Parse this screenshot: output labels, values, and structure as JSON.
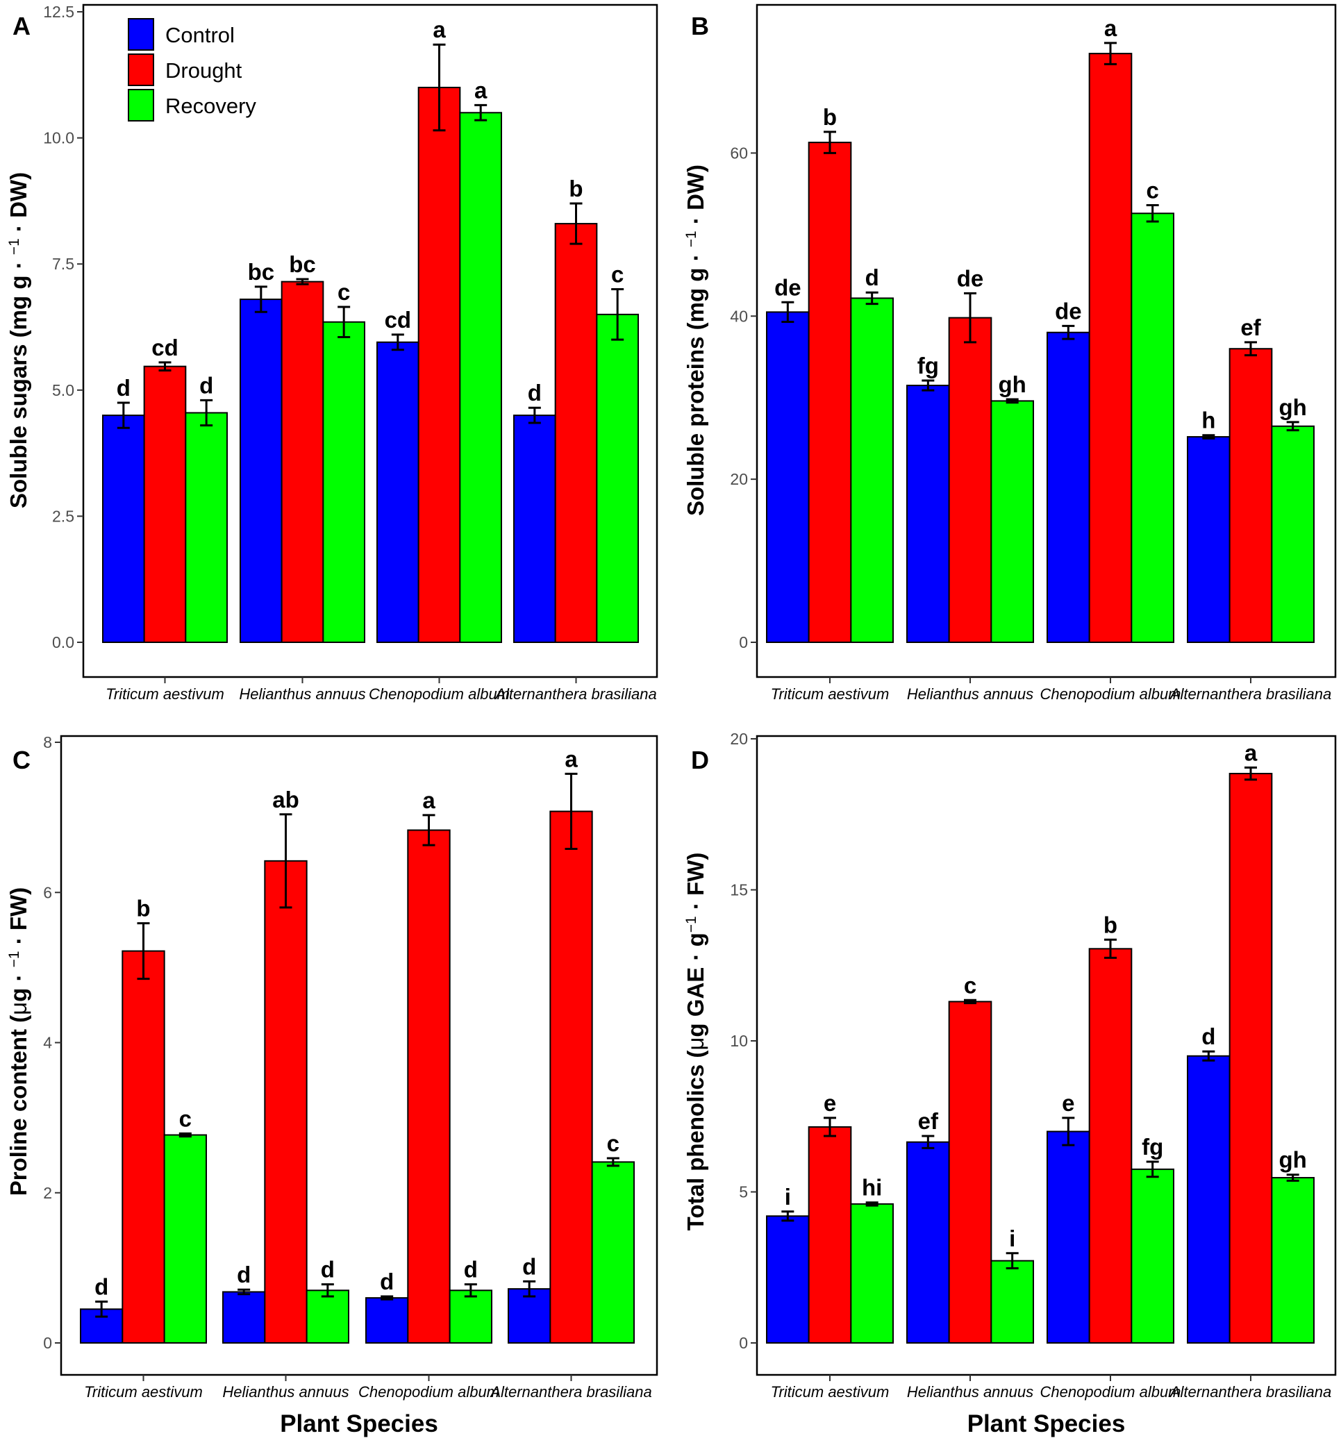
{
  "figure": {
    "legend": [
      {
        "name": "Control",
        "color": "#0000FF"
      },
      {
        "name": "Drought",
        "color": "#FF0000"
      },
      {
        "name": "Recovery",
        "color": "#00FF00"
      }
    ],
    "xlabel": "Plant Species"
  },
  "chart_data": [
    {
      "panel": "A",
      "type": "bar",
      "ylabel_main": "Soluble sugars (mg",
      "ylabel_g": "g",
      "ylabel_sup": "−1",
      "ylabel_tail": "DW)",
      "xlabel": "",
      "ylim": [
        0,
        12.5
      ],
      "yticks": [
        0,
        2.5,
        5,
        7.5,
        10,
        12.5
      ],
      "ytick_labels": [
        "0.0",
        "2.5",
        "5.0",
        "7.5",
        "10.0",
        "12.5"
      ],
      "categories": [
        "Triticum aestivum",
        "Helianthus annuus",
        "Chenopodium album",
        "Alternanthera brasiliana"
      ],
      "series": [
        {
          "name": "Control",
          "color": "#0000FF",
          "values": [
            4.5,
            6.8,
            5.95,
            4.5
          ],
          "errors": [
            0.25,
            0.25,
            0.15,
            0.15
          ],
          "labels": [
            "d",
            "bc",
            "cd",
            "d"
          ]
        },
        {
          "name": "Drought",
          "color": "#FF0000",
          "values": [
            5.47,
            7.15,
            11.0,
            8.3
          ],
          "errors": [
            0.08,
            0.05,
            0.85,
            0.4
          ],
          "labels": [
            "cd",
            "bc",
            "a",
            "b"
          ]
        },
        {
          "name": "Recovery",
          "color": "#00FF00",
          "values": [
            4.55,
            6.35,
            10.5,
            6.5
          ],
          "errors": [
            0.25,
            0.3,
            0.15,
            0.5
          ],
          "labels": [
            "d",
            "c",
            "a",
            "c"
          ]
        }
      ]
    },
    {
      "panel": "B",
      "type": "bar",
      "ylabel_main": "Soluble proteins (mg",
      "ylabel_g": "g",
      "ylabel_sup": "−1",
      "ylabel_tail": "DW)",
      "xlabel": "",
      "ylim": [
        0,
        78
      ],
      "yticks": [
        0,
        20,
        40,
        60
      ],
      "ytick_labels": [
        "0",
        "20",
        "40",
        "60"
      ],
      "categories": [
        "Triticum aestivum",
        "Helianthus annuus",
        "Chenopodium album",
        "Alternanthera brasiliana"
      ],
      "series": [
        {
          "name": "Control",
          "color": "#0000FF",
          "values": [
            40.5,
            31.5,
            38.0,
            25.2
          ],
          "errors": [
            1.2,
            0.6,
            0.8,
            0.2
          ],
          "labels": [
            "de",
            "fg",
            "de",
            "h"
          ]
        },
        {
          "name": "Drought",
          "color": "#FF0000",
          "values": [
            61.3,
            39.8,
            72.2,
            36.0
          ],
          "errors": [
            1.3,
            3.0,
            1.3,
            0.8
          ],
          "labels": [
            "b",
            "de",
            "a",
            "ef"
          ]
        },
        {
          "name": "Recovery",
          "color": "#00FF00",
          "values": [
            42.2,
            29.6,
            52.6,
            26.5
          ],
          "errors": [
            0.7,
            0.2,
            1.0,
            0.5
          ],
          "labels": [
            "d",
            "gh",
            "c",
            "gh"
          ]
        }
      ]
    },
    {
      "panel": "C",
      "type": "bar",
      "ylabel_main": "Proline content (",
      "ylabel_mu": "μ",
      "ylabel_g": "g",
      "ylabel_sup": "−1",
      "ylabel_tail": "FW)",
      "xlabel": "Plant Species",
      "ylim": [
        0,
        8
      ],
      "yticks": [
        0,
        2,
        4,
        6,
        8
      ],
      "ytick_labels": [
        "0",
        "2",
        "4",
        "6",
        "8"
      ],
      "categories": [
        "Triticum aestivum",
        "Helianthus annuus",
        "Chenopodium album",
        "Alternanthera brasiliana"
      ],
      "series": [
        {
          "name": "Control",
          "color": "#0000FF",
          "values": [
            0.45,
            0.68,
            0.6,
            0.72
          ],
          "errors": [
            0.1,
            0.03,
            0.02,
            0.1
          ],
          "labels": [
            "d",
            "d",
            "d",
            "d"
          ]
        },
        {
          "name": "Drought",
          "color": "#FF0000",
          "values": [
            5.22,
            6.42,
            6.83,
            7.08
          ],
          "errors": [
            0.37,
            0.62,
            0.2,
            0.5
          ],
          "labels": [
            "b",
            "ab",
            "a",
            "a"
          ]
        },
        {
          "name": "Recovery",
          "color": "#00FF00",
          "values": [
            2.77,
            0.7,
            0.7,
            2.41
          ],
          "errors": [
            0.02,
            0.08,
            0.08,
            0.05
          ],
          "labels": [
            "c",
            "d",
            "d",
            "c"
          ]
        }
      ]
    },
    {
      "panel": "D",
      "type": "bar",
      "ylabel_main": "Total phenolics (",
      "ylabel_mu": "μ",
      "ylabel_g": "g GAE",
      "ylabel_g2": "g",
      "ylabel_sup": "−1",
      "ylabel_tail": "FW)",
      "xlabel": "Plant Species",
      "ylim": [
        0,
        20
      ],
      "yticks": [
        0,
        5,
        10,
        15,
        20
      ],
      "ytick_labels": [
        "0",
        "5",
        "10",
        "15",
        "20"
      ],
      "categories": [
        "Triticum aestivum",
        "Helianthus annuus",
        "Chenopodium album",
        "Alternanthera brasiliana"
      ],
      "series": [
        {
          "name": "Control",
          "color": "#0000FF",
          "values": [
            4.2,
            6.65,
            7.0,
            9.5
          ],
          "errors": [
            0.15,
            0.2,
            0.45,
            0.15
          ],
          "labels": [
            "i",
            "ef",
            "e",
            "d"
          ]
        },
        {
          "name": "Drought",
          "color": "#FF0000",
          "values": [
            7.15,
            11.3,
            13.05,
            18.85
          ],
          "errors": [
            0.3,
            0.05,
            0.3,
            0.2
          ],
          "labels": [
            "e",
            "c",
            "b",
            "a"
          ]
        },
        {
          "name": "Recovery",
          "color": "#00FF00",
          "values": [
            4.6,
            2.72,
            5.75,
            5.47
          ],
          "errors": [
            0.05,
            0.25,
            0.25,
            0.1
          ],
          "labels": [
            "hi",
            "i",
            "fg",
            "gh"
          ]
        }
      ]
    }
  ]
}
